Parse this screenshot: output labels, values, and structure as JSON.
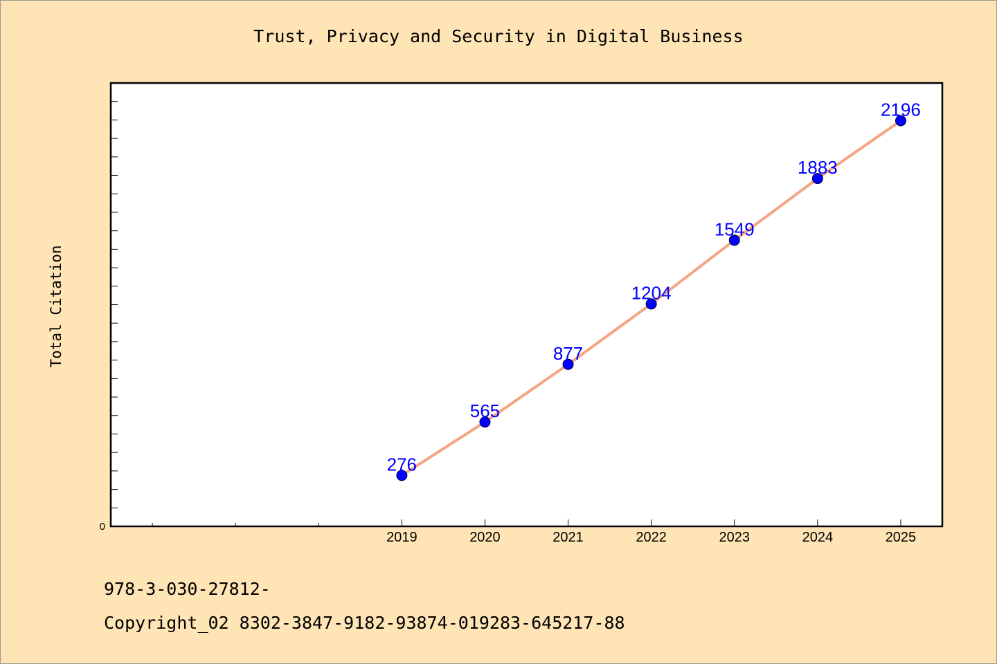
{
  "chart_data": {
    "type": "line",
    "title": "Trust, Privacy and Security in Digital Business",
    "xlabel": "",
    "ylabel": "Total Citation",
    "x": [
      "2019",
      "2020",
      "2021",
      "2022",
      "2023",
      "2024",
      "2025"
    ],
    "values": [
      276,
      565,
      877,
      1204,
      1549,
      1883,
      2196
    ],
    "data_labels": [
      "276",
      "565",
      "877",
      "1204",
      "1549",
      "1883",
      "2196"
    ],
    "xlim": [
      2015.5,
      2025.5
    ],
    "ylim": [
      0,
      2400
    ],
    "y_tick_labels": [
      "0"
    ],
    "grid": false,
    "colors": {
      "line": "#f4a582",
      "marker": "#0000ff",
      "data_label": "#0000ff",
      "plot_background": "#ffffff",
      "figure_background": "#ffe4b5"
    }
  },
  "footer": {
    "isbn": "978-3-030-27812-",
    "copyright": "Copyright_02 8302-3847-9182-93874-019283-645217-88"
  }
}
